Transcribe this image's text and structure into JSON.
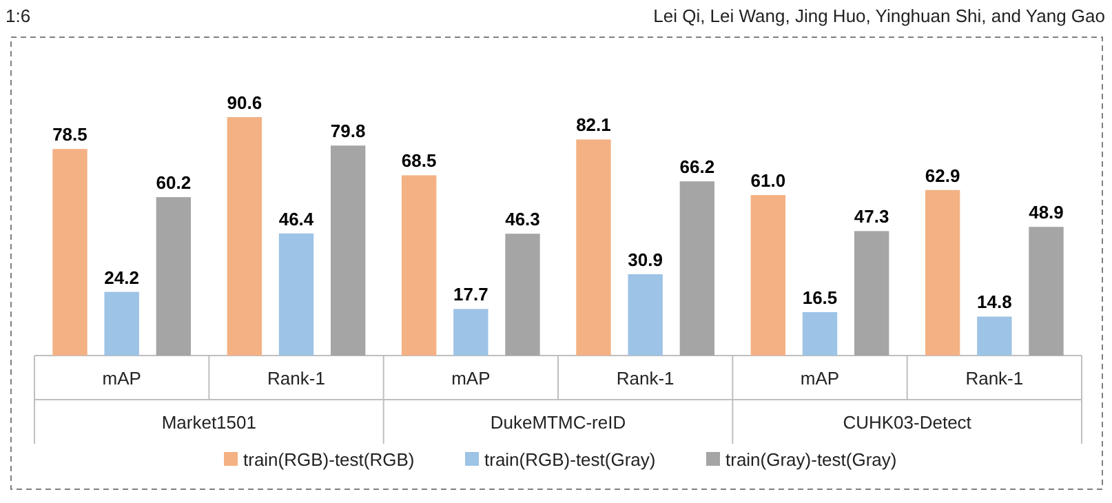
{
  "chart_data": [
    {
      "type": "bar",
      "xlabel": "Market1501",
      "categories": [
        "mAP",
        "Rank-1"
      ],
      "legend": "bottom",
      "tick_labels": "x",
      "annotations": [
        "1:6",
        "Lei Qi, Lei Wang, Jing Huo, Yinghuan Shi, and Yang Gao"
      ],
      "series": [
        {
          "name": "train(RGB)-test(RGB)",
          "color": "#f4b183",
          "values": [
            78.5,
            90.6
          ],
          "value_labels": [
            "78.5",
            "90.6"
          ]
        },
        {
          "name": "train(RGB)-test(Gray)",
          "color": "#9dc3e6",
          "values": [
            24.2,
            46.4
          ],
          "value_labels": [
            "24.2",
            "46.4"
          ]
        },
        {
          "name": "train(Gray)-test(Gray)",
          "color": "#a5a5a5",
          "values": [
            60.2,
            79.8
          ],
          "value_labels": [
            "60.2",
            "79.8"
          ]
        }
      ]
    },
    {
      "type": "bar",
      "xlabel": "DukeMTMC-reID",
      "categories": [
        "mAP",
        "Rank-1"
      ],
      "tick_labels": "x",
      "series": [
        {
          "color": "#f4b183",
          "values": [
            68.5,
            82.1
          ],
          "value_labels": [
            "68.5",
            "82.1"
          ]
        },
        {
          "color": "#9dc3e6",
          "values": [
            17.7,
            30.9
          ],
          "value_labels": [
            "17.7",
            "30.9"
          ]
        },
        {
          "color": "#a5a5a5",
          "values": [
            46.3,
            66.2
          ],
          "value_labels": [
            "46.3",
            "66.2"
          ]
        }
      ]
    },
    {
      "type": "bar",
      "xlabel": "CUHK03-Detect",
      "categories": [
        "mAP",
        "Rank-1"
      ],
      "tick_labels": "x",
      "series": [
        {
          "color": "#f4b183",
          "values": [
            61.0,
            62.9
          ],
          "value_labels": [
            "61.0",
            "62.9"
          ]
        },
        {
          "color": "#9dc3e6",
          "values": [
            16.5,
            14.8
          ],
          "value_labels": [
            "16.5",
            "14.8"
          ]
        },
        {
          "color": "#a5a5a5",
          "values": [
            47.3,
            48.9
          ],
          "value_labels": [
            "47.3",
            "48.9"
          ]
        }
      ]
    }
  ]
}
